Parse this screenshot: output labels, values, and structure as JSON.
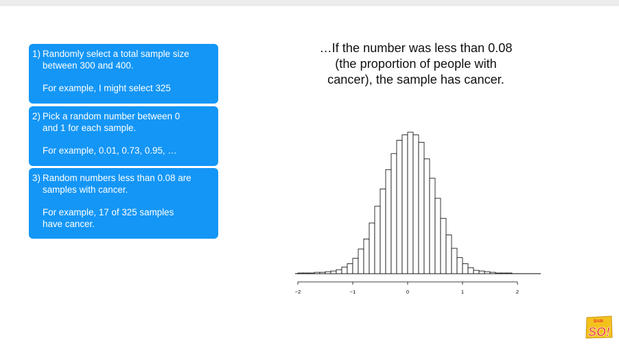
{
  "steps": [
    {
      "number": "1)",
      "text": "Randomly select a total sample size\nbetween 300 and 400.",
      "example": "For example, I might select 325"
    },
    {
      "number": "2)",
      "text": "Pick a random number between 0\nand 1 for each sample.",
      "example": "For example, 0.01, 0.73, 0.95, …"
    },
    {
      "number": "3)",
      "text": "Random numbers less than 0.08 are\nsamples with cancer.",
      "example": "For example, 17 of 325 samples\nhave cancer."
    }
  ],
  "headline": {
    "line1": "…If the number was less than 0.08",
    "line2": "(the proportion of people with",
    "line3": "cancer), the sample has cancer."
  },
  "logo": {
    "text": "SO!",
    "small_text": "BAM",
    "colors": [
      "#e8402a",
      "#f3c21d"
    ]
  },
  "colors": {
    "box": "#1496f6",
    "bar_fill": "#ffffff",
    "bar_stroke": "#000000"
  },
  "chart_data": {
    "type": "bar",
    "title": "",
    "xlabel": "",
    "ylabel": "",
    "xlim": [
      -2.05,
      2.2
    ],
    "ticks": [
      -2,
      -1,
      0,
      1,
      2
    ],
    "tick_labels": [
      "−2",
      "−1",
      "0",
      "1",
      "2"
    ],
    "bin_width": 0.1,
    "bin_starts": [
      -2.0,
      -1.9,
      -1.8,
      -1.7,
      -1.6,
      -1.5,
      -1.4,
      -1.3,
      -1.2,
      -1.1,
      -1.0,
      -0.9,
      -0.8,
      -0.7,
      -0.6,
      -0.5,
      -0.4,
      -0.3,
      -0.2,
      -0.1,
      0.0,
      0.1,
      0.2,
      0.3,
      0.4,
      0.5,
      0.6,
      0.7,
      0.8,
      0.9,
      1.0,
      1.1,
      1.2,
      1.3,
      1.4,
      1.5,
      1.6,
      1.7,
      1.8,
      1.9
    ],
    "values": [
      1,
      1,
      1,
      2,
      2,
      3,
      4,
      6,
      10,
      15,
      23,
      37,
      52,
      76,
      101,
      127,
      156,
      180,
      200,
      208,
      212,
      208,
      197,
      172,
      143,
      113,
      83,
      58,
      38,
      24,
      15,
      9,
      5,
      4,
      3,
      2,
      1,
      1,
      1,
      0
    ],
    "ylim": [
      0,
      220
    ],
    "axes": {
      "y_axis": false,
      "grid": false
    }
  }
}
